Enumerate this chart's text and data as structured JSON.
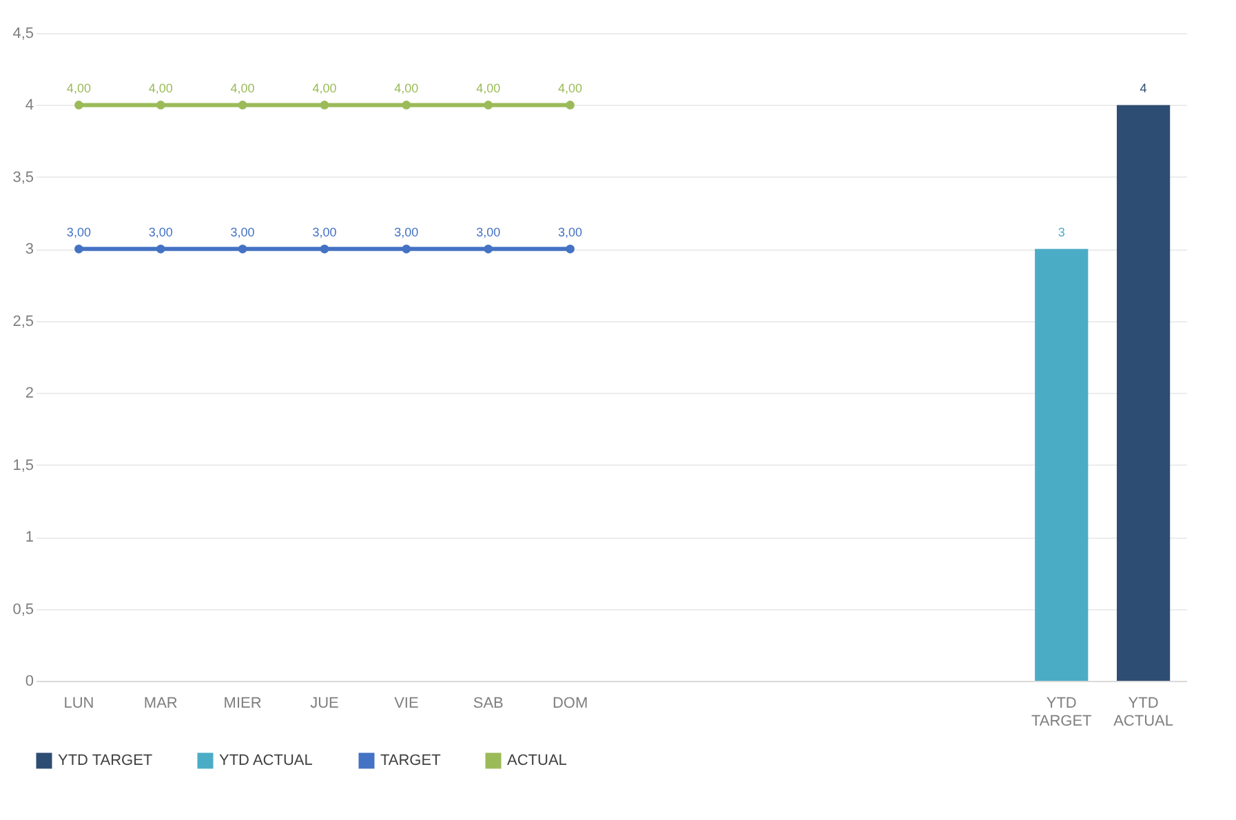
{
  "chart_data": {
    "type": "bar",
    "categories": [
      "LUN",
      "MAR",
      "MIER",
      "JUE",
      "VIE",
      "SAB",
      "DOM",
      null,
      null,
      null,
      null,
      null,
      "YTD TARGET",
      "YTD ACTUAL"
    ],
    "series": [
      {
        "name": "YTD TARGET",
        "color": "#2e4d72",
        "values": [
          null,
          null,
          null,
          null,
          null,
          null,
          null,
          null,
          null,
          null,
          null,
          null,
          null,
          4
        ],
        "value_labels": [
          null,
          null,
          null,
          null,
          null,
          null,
          null,
          null,
          null,
          null,
          null,
          null,
          null,
          "4"
        ]
      },
      {
        "name": "YTD ACTUAL",
        "color": "#4bacc6",
        "values": [
          null,
          null,
          null,
          null,
          null,
          null,
          null,
          null,
          null,
          null,
          null,
          null,
          3,
          null
        ],
        "value_labels": [
          null,
          null,
          null,
          null,
          null,
          null,
          null,
          null,
          null,
          null,
          null,
          null,
          "3",
          null
        ]
      },
      {
        "name": "TARGET",
        "type": "line",
        "color": "#4472c4",
        "values": [
          3,
          3,
          3,
          3,
          3,
          3,
          3,
          null,
          null,
          null,
          null,
          null,
          null,
          null
        ],
        "value_labels": [
          "3,00",
          "3,00",
          "3,00",
          "3,00",
          "3,00",
          "3,00",
          "3,00",
          null,
          null,
          null,
          null,
          null,
          null,
          null
        ]
      },
      {
        "name": "ACTUAL",
        "type": "line",
        "color": "#9bbb59",
        "values": [
          4,
          4,
          4,
          4,
          4,
          4,
          4,
          null,
          null,
          null,
          null,
          null,
          null,
          null
        ],
        "value_labels": [
          "4,00",
          "4,00",
          "4,00",
          "4,00",
          "4,00",
          "4,00",
          "4,00",
          null,
          null,
          null,
          null,
          null,
          null,
          null
        ]
      }
    ],
    "ylim": [
      0,
      4.5
    ],
    "yticks": [
      0,
      {
        "value": 0.5,
        "label": "0,5"
      },
      1,
      {
        "value": 1.5,
        "label": "1,5"
      },
      2,
      {
        "value": 2.5,
        "label": "2,5"
      },
      3,
      {
        "value": 3.5,
        "label": "3,5"
      },
      4,
      {
        "value": 4.5,
        "label": "4,5"
      }
    ],
    "grid": "y",
    "legend": "bottom",
    "marker": "circle",
    "line_style": "solid"
  }
}
